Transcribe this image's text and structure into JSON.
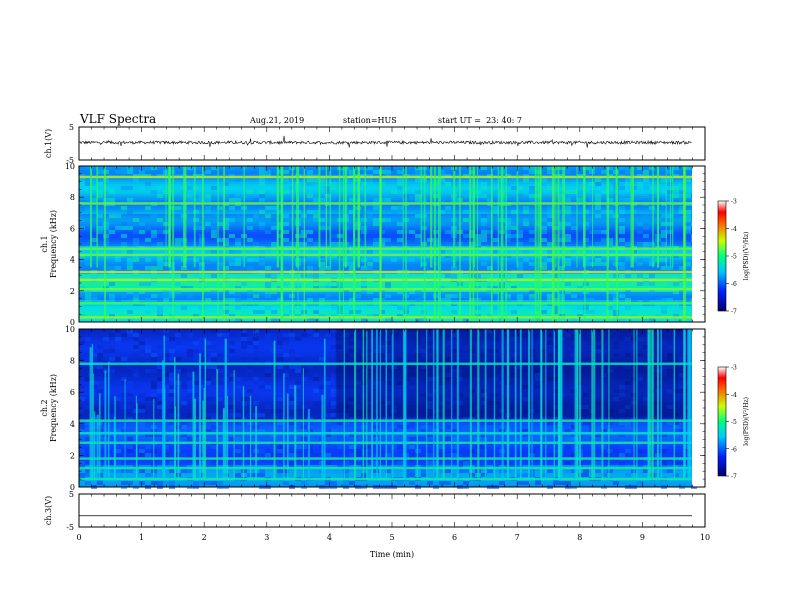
{
  "header": {
    "title": "VLF Spectra",
    "date": "Aug.21, 2019",
    "station": "station=HUS",
    "start_ut": "start UT =  23: 40: 7"
  },
  "chart_data": [
    {
      "type": "line",
      "panel": "ch1-waveform",
      "ylabel": "ch.1(V)",
      "yticks": [
        "5",
        "-5"
      ],
      "ylim": [
        -5,
        5
      ],
      "xlim": [
        0,
        10
      ],
      "description_level": 0.3
    },
    {
      "type": "heatmap",
      "panel": "ch1-spectrogram",
      "ylabel_line1": "ch.1",
      "ylabel_line2": "Frequency (kHz)",
      "yticks": [
        "0",
        "2",
        "4",
        "6",
        "8",
        "10"
      ],
      "ylim": [
        0,
        10
      ],
      "xlim": [
        0,
        10
      ],
      "colorbar": {
        "ticks": [
          "-3",
          "-4",
          "-5",
          "-6",
          "-7"
        ],
        "range": [
          -7,
          -3
        ],
        "label": "log(PSD)(V²/Hz)"
      },
      "bands_khz": [
        0.3,
        1.2,
        2.1,
        2.7,
        3.2,
        4.3,
        4.7,
        7.6,
        9.3
      ]
    },
    {
      "type": "heatmap",
      "panel": "ch2-spectrogram",
      "ylabel_line1": "ch.2",
      "ylabel_line2": "Frequency (kHz)",
      "yticks": [
        "0",
        "2",
        "4",
        "6",
        "8",
        "10"
      ],
      "ylim": [
        0,
        10
      ],
      "xlim": [
        0,
        10
      ],
      "colorbar": {
        "ticks": [
          "-3",
          "-4",
          "-5",
          "-6",
          "-7"
        ],
        "range": [
          -7,
          -3
        ],
        "label": "log(PSD)(V²/Hz)"
      },
      "bands_khz": [
        0.5,
        1.2,
        1.8,
        2.8,
        3.4,
        4.2,
        7.8
      ]
    },
    {
      "type": "line",
      "panel": "ch3-waveform",
      "ylabel": "ch.3(V)",
      "yticks": [
        "5",
        "-5"
      ],
      "ylim": [
        -5,
        5
      ],
      "xlim": [
        0,
        10
      ],
      "xlabel": "Time (min)",
      "xticks": [
        "0",
        "1",
        "2",
        "3",
        "4",
        "5",
        "6",
        "7",
        "8",
        "9",
        "10"
      ],
      "constant_value": -1.6
    }
  ],
  "colors": {
    "axis": "#000000",
    "spec_dark": "#000a6e",
    "spec_blue": "#0a3cff",
    "spec_cyan": "#00e6e6",
    "spec_green": "#28ff50",
    "spec_yellow": "#ffe600",
    "spec_red": "#ff0000"
  }
}
